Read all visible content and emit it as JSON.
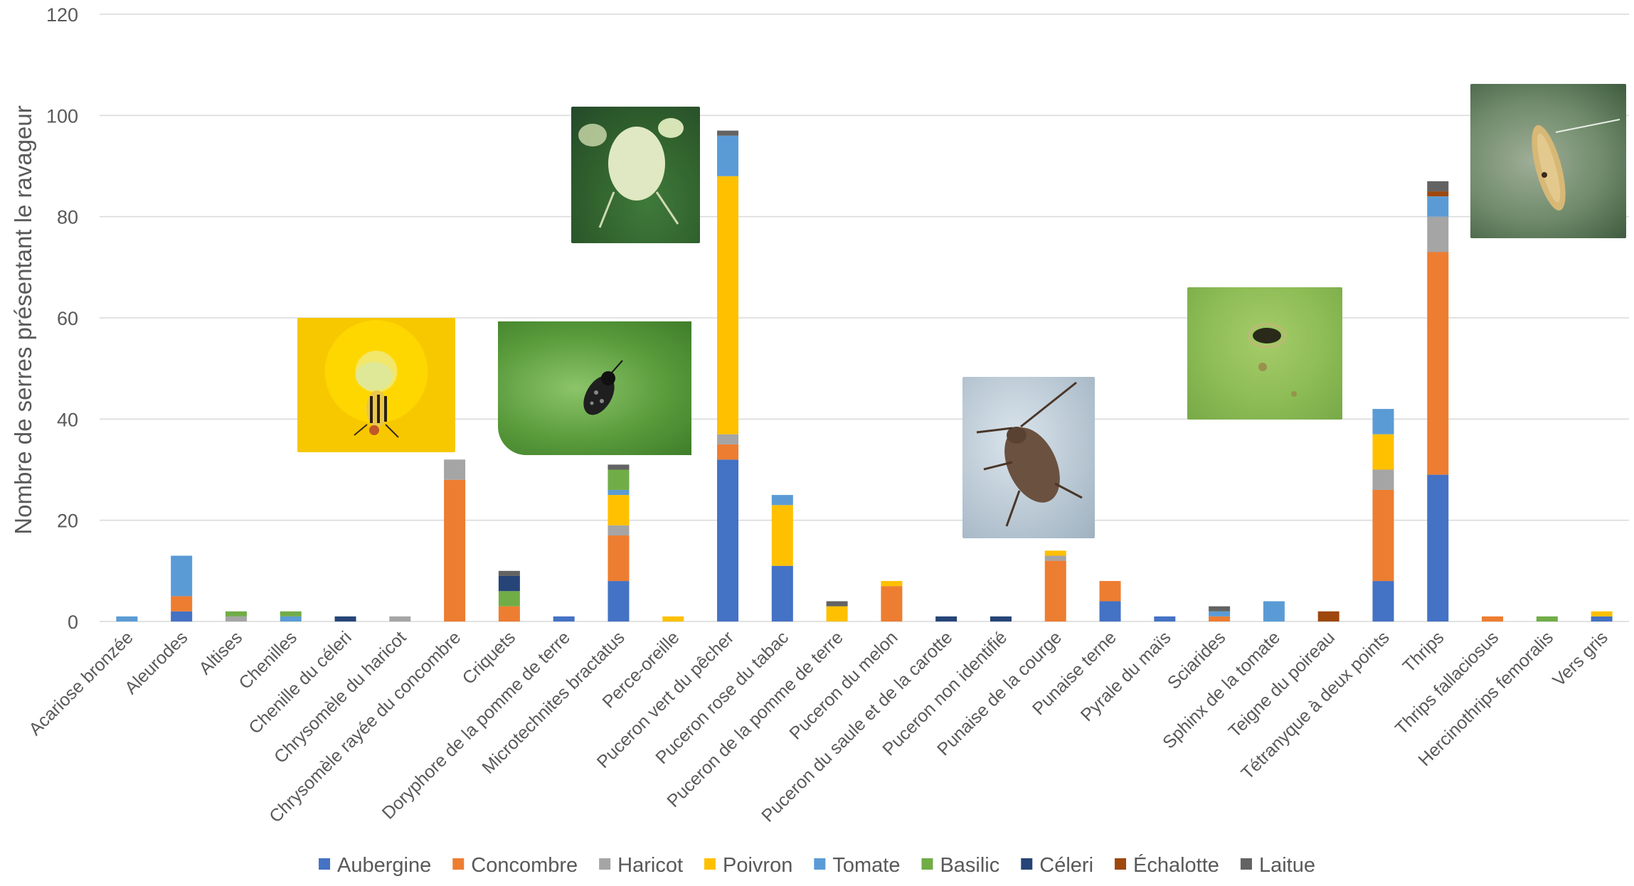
{
  "chart_data": {
    "type": "bar",
    "stacked": true,
    "title": "",
    "xlabel": "",
    "ylabel": "Nombre de serres présentant le ravageur",
    "ylim": [
      0,
      120
    ],
    "yticks": [
      0,
      20,
      40,
      60,
      80,
      100,
      120
    ],
    "grid": true,
    "legend_position": "bottom",
    "categories": [
      "Acariose bronzée",
      "Aleurodes",
      "Altises",
      "Chenilles",
      "Chenille du céleri",
      "Chrysomèle du haricot",
      "Chrysomèle rayée du concombre",
      "Criquets",
      "Doryphore de la pomme de terre",
      "Microtechnites bractatus",
      "Perce-oreille",
      "Puceron vert du pêcher",
      "Puceron rose du tabac",
      "Puceron de la pomme de terre",
      "Puceron du melon",
      "Puceron du saule et de la carotte",
      "Puceron non identifié",
      "Punaise de la courge",
      "Punaise terne",
      "Pyrale du maïs",
      "Sciarides",
      "Sphinx de la tomate",
      "Teigne du poireau",
      "Tétranyque à deux points",
      "Thrips",
      "Thrips fallaciosus",
      "Hercinothrips femoralis",
      "Vers gris"
    ],
    "series": [
      {
        "name": "Aubergine",
        "color": "#4472C4",
        "values": [
          0,
          2,
          0,
          0,
          0,
          0,
          0,
          0,
          1,
          8,
          0,
          32,
          11,
          0,
          0,
          0,
          0,
          0,
          4,
          1,
          0,
          0,
          0,
          8,
          29,
          0,
          0,
          1
        ]
      },
      {
        "name": "Concombre",
        "color": "#ED7D31",
        "values": [
          0,
          3,
          0,
          0,
          0,
          0,
          28,
          3,
          0,
          9,
          0,
          3,
          0,
          0,
          7,
          0,
          0,
          12,
          4,
          0,
          1,
          0,
          0,
          18,
          44,
          1,
          0,
          0
        ]
      },
      {
        "name": "Haricot",
        "color": "#A5A5A5",
        "values": [
          0,
          0,
          1,
          0,
          0,
          1,
          4,
          0,
          0,
          2,
          0,
          2,
          0,
          0,
          0,
          0,
          0,
          1,
          0,
          0,
          0,
          0,
          0,
          4,
          7,
          0,
          0,
          0
        ]
      },
      {
        "name": "Poivron",
        "color": "#FFC000",
        "values": [
          0,
          0,
          0,
          0,
          0,
          0,
          0,
          0,
          0,
          6,
          1,
          51,
          12,
          3,
          1,
          0,
          0,
          1,
          0,
          0,
          0,
          0,
          0,
          7,
          0,
          0,
          0,
          1
        ]
      },
      {
        "name": "Tomate",
        "color": "#5B9BD5",
        "values": [
          1,
          8,
          0,
          1,
          0,
          0,
          0,
          0,
          0,
          1,
          0,
          8,
          2,
          0,
          0,
          0,
          0,
          0,
          0,
          0,
          1,
          4,
          0,
          5,
          4,
          0,
          0,
          0
        ]
      },
      {
        "name": "Basilic",
        "color": "#70AD47",
        "values": [
          0,
          0,
          1,
          1,
          0,
          0,
          0,
          3,
          0,
          4,
          0,
          0,
          0,
          0,
          0,
          0,
          0,
          0,
          0,
          0,
          0,
          0,
          0,
          0,
          0,
          0,
          1,
          0
        ]
      },
      {
        "name": "Céleri",
        "color": "#264478",
        "values": [
          0,
          0,
          0,
          0,
          1,
          0,
          0,
          3,
          0,
          0,
          0,
          0,
          0,
          0,
          0,
          1,
          1,
          0,
          0,
          0,
          0,
          0,
          0,
          0,
          0,
          0,
          0,
          0
        ]
      },
      {
        "name": "Échalotte",
        "color": "#9E480E",
        "values": [
          0,
          0,
          0,
          0,
          0,
          0,
          0,
          0,
          0,
          0,
          0,
          0,
          0,
          0,
          0,
          0,
          0,
          0,
          0,
          0,
          0,
          0,
          2,
          0,
          1,
          0,
          0,
          0
        ]
      },
      {
        "name": "Laitue",
        "color": "#636363",
        "values": [
          0,
          0,
          0,
          0,
          0,
          0,
          0,
          1,
          0,
          1,
          0,
          1,
          0,
          1,
          0,
          0,
          0,
          0,
          0,
          0,
          1,
          0,
          0,
          0,
          2,
          0,
          0,
          0
        ]
      }
    ]
  },
  "photos": [
    {
      "name": "photo-chrysomele",
      "subject": "chrysomèle rayée sur fleur jaune"
    },
    {
      "name": "photo-microtechnites",
      "subject": "punaise noire tachetée sur feuille"
    },
    {
      "name": "photo-puceron",
      "subject": "puceron vert pâle"
    },
    {
      "name": "photo-punaise-courge",
      "subject": "punaise brune"
    },
    {
      "name": "photo-teigne",
      "subject": "trou dans une feuille"
    },
    {
      "name": "photo-thrips",
      "subject": "thrips sur feuille"
    }
  ]
}
